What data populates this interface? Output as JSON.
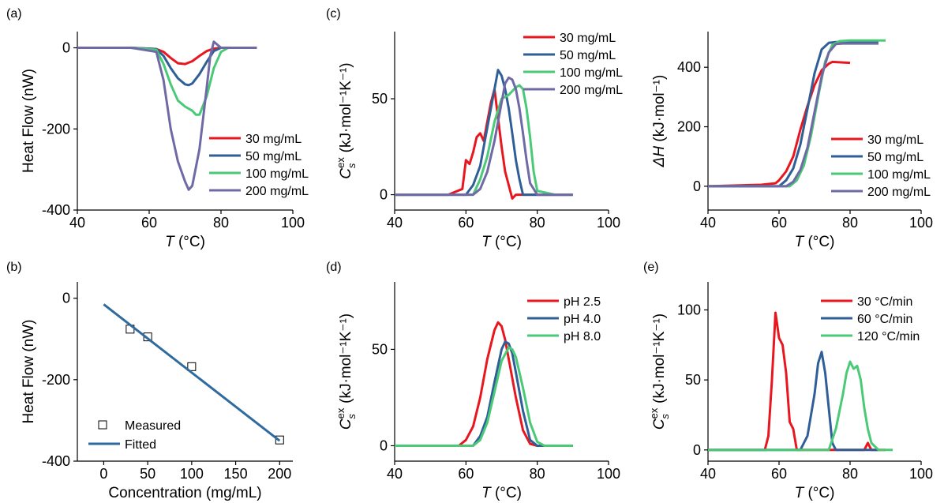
{
  "colors": {
    "red": "#e8171f",
    "blue": "#2f5f96",
    "green": "#4ac977",
    "purple": "#6f6aa6",
    "fit": "#2f6b9e"
  },
  "chart_data": [
    {
      "panel": "(a)",
      "type": "line",
      "xlabel": "T (°C)",
      "ylabel": "Heat Flow (nW)",
      "xlim": [
        40,
        100
      ],
      "ylim": [
        -400,
        40
      ],
      "xticks": [
        "40",
        "60",
        "80",
        "100"
      ],
      "yticks": [
        "0",
        "-200",
        "-400"
      ],
      "legend_position": "lower-right",
      "series": [
        {
          "name": "30 mg/mL",
          "color": "red",
          "x": [
            40,
            55,
            62,
            64,
            66,
            68,
            70,
            72,
            74,
            76,
            78,
            80,
            85,
            90
          ],
          "y": [
            0,
            0,
            -3,
            -10,
            -25,
            -38,
            -40,
            -33,
            -20,
            -8,
            -2,
            0,
            0,
            0
          ]
        },
        {
          "name": "50 mg/mL",
          "color": "blue",
          "x": [
            40,
            55,
            62,
            64,
            66,
            68,
            70,
            71,
            72,
            74,
            76,
            78,
            80,
            85,
            90
          ],
          "y": [
            0,
            0,
            -3,
            -20,
            -50,
            -75,
            -90,
            -92,
            -88,
            -65,
            -35,
            -8,
            0,
            0,
            0
          ]
        },
        {
          "name": "100 mg/mL",
          "color": "green",
          "x": [
            40,
            55,
            62,
            64,
            66,
            68,
            70,
            72,
            73,
            74,
            76,
            78,
            80,
            82,
            85,
            90
          ],
          "y": [
            0,
            0,
            -5,
            -40,
            -90,
            -130,
            -145,
            -155,
            -165,
            -165,
            -120,
            -50,
            -10,
            0,
            0,
            0
          ]
        },
        {
          "name": "200 mg/mL",
          "color": "purple",
          "x": [
            40,
            55,
            62,
            64,
            66,
            68,
            70,
            71,
            72,
            74,
            76,
            77,
            78,
            80,
            85,
            90
          ],
          "y": [
            0,
            0,
            -10,
            -80,
            -200,
            -280,
            -330,
            -350,
            -340,
            -250,
            -100,
            -20,
            15,
            0,
            0,
            0
          ]
        }
      ]
    },
    {
      "panel": "(b)",
      "type": "scatter",
      "xlabel": "Concentration (mg/mL)",
      "ylabel": "Heat Flow (nW)",
      "xlim": [
        -30,
        215
      ],
      "ylim": [
        -400,
        40
      ],
      "xticks": [
        "0",
        "50",
        "100",
        "150",
        "200"
      ],
      "yticks": [
        "0",
        "-200",
        "-400"
      ],
      "legend_position": "lower-left",
      "series": [
        {
          "name": "Measured",
          "color": "black",
          "x": [
            30,
            50,
            100,
            200
          ],
          "y": [
            -76,
            -95,
            -168,
            -348
          ]
        },
        {
          "name": "Fitted",
          "color": "fit",
          "x": [
            0,
            200
          ],
          "y": [
            -15,
            -350
          ]
        }
      ]
    },
    {
      "panel": "(c)",
      "type": "line",
      "xlabel": "T (°C)",
      "ylabel": "C_s^ex (kJ·mol⁻¹K⁻¹)",
      "xlim": [
        40,
        100
      ],
      "ylim": [
        -8,
        85
      ],
      "xticks": [
        "40",
        "60",
        "80",
        "100"
      ],
      "yticks": [
        "0",
        "50"
      ],
      "legend_position": "top-right",
      "series": [
        {
          "name": "30 mg/mL",
          "color": "red",
          "x": [
            40,
            55,
            59,
            60,
            61,
            62,
            63,
            64,
            65,
            66,
            67,
            68,
            69,
            70,
            71,
            72,
            73,
            74,
            80,
            90
          ],
          "y": [
            0,
            0,
            3,
            18,
            16,
            22,
            30,
            32,
            28,
            38,
            48,
            55,
            40,
            25,
            12,
            5,
            -2,
            0,
            0,
            0
          ]
        },
        {
          "name": "50 mg/mL",
          "color": "blue",
          "x": [
            40,
            60,
            62,
            64,
            66,
            68,
            69,
            70,
            71,
            72,
            73,
            74,
            75,
            76,
            80,
            90
          ],
          "y": [
            0,
            0,
            5,
            15,
            35,
            55,
            65,
            62,
            55,
            45,
            32,
            18,
            8,
            0,
            0,
            0
          ]
        },
        {
          "name": "100 mg/mL",
          "color": "green",
          "x": [
            40,
            62,
            64,
            66,
            68,
            70,
            72,
            74,
            75,
            76,
            77,
            78,
            79,
            80,
            85,
            90
          ],
          "y": [
            0,
            0,
            8,
            20,
            38,
            50,
            52,
            56,
            57,
            55,
            45,
            30,
            12,
            2,
            0,
            0
          ]
        },
        {
          "name": "200 mg/mL",
          "color": "purple",
          "x": [
            40,
            62,
            64,
            66,
            68,
            70,
            71,
            72,
            73,
            74,
            75,
            76,
            77,
            78,
            80,
            90
          ],
          "y": [
            0,
            0,
            3,
            12,
            28,
            48,
            58,
            61,
            60,
            55,
            45,
            32,
            18,
            6,
            0,
            0
          ]
        }
      ]
    },
    {
      "panel": "(c)-right",
      "type": "line",
      "xlabel": "T (°C)",
      "ylabel": "ΔH (kJ·mol⁻¹)",
      "xlim": [
        40,
        100
      ],
      "ylim": [
        -80,
        520
      ],
      "xticks": [
        "40",
        "60",
        "80",
        "100"
      ],
      "yticks": [
        "0",
        "200",
        "400"
      ],
      "legend_position": "lower-right",
      "series": [
        {
          "name": "30 mg/mL",
          "color": "red",
          "x": [
            40,
            55,
            59,
            60,
            62,
            64,
            66,
            68,
            70,
            72,
            74,
            75,
            80
          ],
          "y": [
            0,
            5,
            10,
            20,
            50,
            100,
            190,
            270,
            340,
            390,
            412,
            418,
            415
          ]
        },
        {
          "name": "50 mg/mL",
          "color": "blue",
          "x": [
            40,
            60,
            62,
            64,
            66,
            68,
            70,
            72,
            74,
            76,
            78,
            88
          ],
          "y": [
            0,
            0,
            20,
            60,
            140,
            260,
            380,
            460,
            482,
            485,
            485,
            485
          ]
        },
        {
          "name": "100 mg/mL",
          "color": "green",
          "x": [
            40,
            63,
            65,
            67,
            69,
            71,
            73,
            75,
            77,
            80,
            90
          ],
          "y": [
            0,
            0,
            20,
            70,
            170,
            300,
            420,
            475,
            488,
            490,
            490
          ]
        },
        {
          "name": "200 mg/mL",
          "color": "purple",
          "x": [
            40,
            62,
            64,
            66,
            68,
            70,
            72,
            74,
            76,
            78,
            88
          ],
          "y": [
            0,
            0,
            15,
            55,
            130,
            250,
            370,
            450,
            478,
            480,
            480
          ]
        }
      ]
    },
    {
      "panel": "(d)",
      "type": "line",
      "xlabel": "T (°C)",
      "ylabel": "C_s^ex (kJ·mol⁻¹K⁻¹)",
      "xlim": [
        40,
        100
      ],
      "ylim": [
        -8,
        85
      ],
      "xticks": [
        "40",
        "60",
        "80",
        "100"
      ],
      "yticks": [
        "0",
        "50"
      ],
      "legend_position": "top-right",
      "series": [
        {
          "name": "pH 2.5",
          "color": "red",
          "x": [
            40,
            58,
            60,
            62,
            64,
            66,
            68,
            69,
            70,
            71,
            72,
            74,
            76,
            78,
            80,
            90
          ],
          "y": [
            0,
            0,
            3,
            10,
            25,
            45,
            60,
            64,
            62,
            55,
            45,
            25,
            8,
            1,
            0,
            0
          ]
        },
        {
          "name": "pH 4.0",
          "color": "blue",
          "x": [
            40,
            62,
            64,
            66,
            68,
            70,
            71,
            72,
            73,
            74,
            76,
            78,
            80,
            90
          ],
          "y": [
            0,
            0,
            5,
            15,
            33,
            50,
            54,
            53,
            48,
            38,
            18,
            3,
            0,
            0
          ]
        },
        {
          "name": "pH 8.0",
          "color": "green",
          "x": [
            40,
            62,
            64,
            66,
            68,
            70,
            72,
            73,
            74,
            76,
            78,
            80,
            82,
            90
          ],
          "y": [
            0,
            0,
            3,
            12,
            28,
            44,
            51,
            50,
            46,
            30,
            12,
            2,
            0,
            0
          ]
        }
      ]
    },
    {
      "panel": "(e)",
      "type": "line",
      "xlabel": "T (°C)",
      "ylabel": "C_s^ex (kJ·mol⁻¹K⁻¹)",
      "xlim": [
        40,
        100
      ],
      "ylim": [
        -8,
        120
      ],
      "xticks": [
        "40",
        "60",
        "80",
        "100"
      ],
      "yticks": [
        "0",
        "50",
        "100"
      ],
      "legend_position": "top-right",
      "series": [
        {
          "name": "30 °C/min",
          "color": "red",
          "x": [
            40,
            56,
            57,
            58,
            59,
            60,
            61,
            62,
            63,
            64,
            65,
            66,
            84,
            85,
            86,
            90
          ],
          "y": [
            0,
            0,
            10,
            50,
            98,
            80,
            75,
            55,
            20,
            15,
            0,
            0,
            0,
            5,
            0,
            0
          ]
        },
        {
          "name": "60 °C/min",
          "color": "blue",
          "x": [
            40,
            66,
            68,
            70,
            71,
            72,
            73,
            74,
            75,
            76,
            78,
            88
          ],
          "y": [
            0,
            0,
            10,
            40,
            62,
            70,
            55,
            30,
            5,
            0,
            0,
            0
          ]
        },
        {
          "name": "120 °C/min",
          "color": "green",
          "x": [
            40,
            74,
            76,
            78,
            79,
            80,
            81,
            82,
            83,
            84,
            85,
            86,
            88,
            92
          ],
          "y": [
            0,
            0,
            15,
            40,
            55,
            63,
            58,
            60,
            50,
            30,
            15,
            5,
            0,
            0
          ]
        }
      ]
    }
  ]
}
